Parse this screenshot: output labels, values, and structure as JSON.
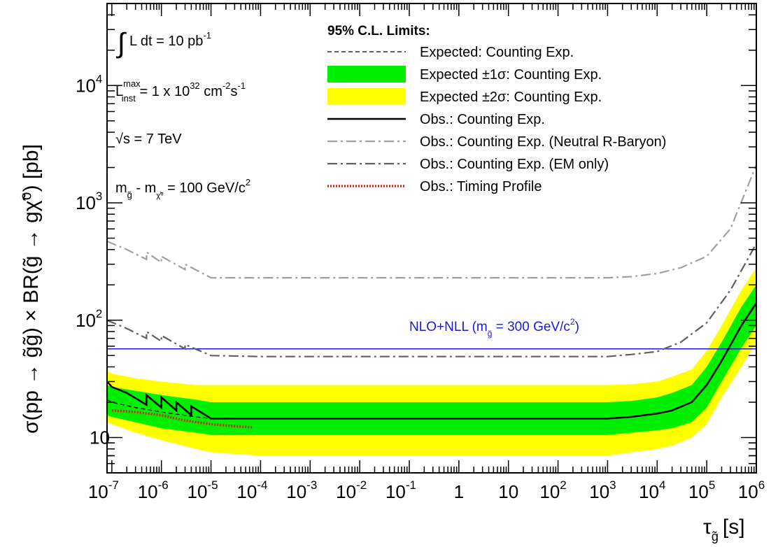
{
  "chart_data": {
    "type": "line",
    "x_scale": "log",
    "y_scale": "log",
    "xlim": [
      8e-08,
      1000000.0
    ],
    "ylim": [
      5,
      50000
    ],
    "xlabel": {
      "main": "τ",
      "sub": "g̃",
      "unit": "[s]"
    },
    "ylabel": "σ(pp → g̃g̃) × BR(g̃ → gχ̃⁰) [pb]",
    "xticks": [
      {
        "v": 1e-07,
        "base": "10",
        "exp": "-7"
      },
      {
        "v": 1e-06,
        "base": "10",
        "exp": "-6"
      },
      {
        "v": 1e-05,
        "base": "10",
        "exp": "-5"
      },
      {
        "v": 0.0001,
        "base": "10",
        "exp": "-4"
      },
      {
        "v": 0.001,
        "base": "10",
        "exp": "-3"
      },
      {
        "v": 0.01,
        "base": "10",
        "exp": "-2"
      },
      {
        "v": 0.1,
        "base": "10",
        "exp": "-1"
      },
      {
        "v": 1,
        "base": "1",
        "exp": ""
      },
      {
        "v": 10,
        "base": "10",
        "exp": ""
      },
      {
        "v": 100,
        "base": "10",
        "exp": "2"
      },
      {
        "v": 1000,
        "base": "10",
        "exp": "3"
      },
      {
        "v": 10000,
        "base": "10",
        "exp": "4"
      },
      {
        "v": 100000,
        "base": "10",
        "exp": "5"
      },
      {
        "v": 1000000,
        "base": "10",
        "exp": "6"
      }
    ],
    "yticks": [
      {
        "v": 10,
        "base": "10",
        "exp": ""
      },
      {
        "v": 100,
        "base": "10",
        "exp": "2"
      },
      {
        "v": 1000,
        "base": "10",
        "exp": "3"
      },
      {
        "v": 10000,
        "base": "10",
        "exp": "4"
      }
    ],
    "info": {
      "lumi": {
        "integral": "∫",
        "text": "L dt = 10 pb",
        "sup": "-1"
      },
      "inst": {
        "main": "L",
        "sup": "max",
        "sub": "inst",
        "rest": " = 1 x 10",
        "exp": "32",
        "unit1": " cm",
        "exp2": "-2",
        "unit2": "s",
        "exp3": "-1"
      },
      "energy": {
        "root": "√s",
        "text": " = 7 TeV"
      },
      "mass": {
        "m1": "m",
        "sub1": "g̃",
        "mid": " - m",
        "sub2": "χ̃⁰",
        "text": " = 100 GeV/c",
        "sup": "2"
      }
    },
    "legend_title": "95% C.L. Limits:",
    "series": [
      {
        "name": "Expected: Counting Exp.",
        "style": "dashed",
        "color": "#000000",
        "x": [
          8e-08,
          1e-07,
          3e-07,
          1e-06,
          5e-06,
          1e-05,
          0.0001,
          0.001,
          1,
          100,
          1000,
          3000,
          10000.0,
          20000.0,
          50000.0,
          100000.0,
          200000.0,
          500000.0,
          1000000.0
        ],
        "y": [
          21,
          20,
          18,
          16.5,
          15,
          14.5,
          14.5,
          14.5,
          14.5,
          14.5,
          14.5,
          15,
          16,
          17,
          20,
          28,
          45,
          90,
          140
        ]
      },
      {
        "name": "Expected ±1σ: Counting Exp.",
        "style": "band",
        "color": "#00ee00",
        "x": [
          8e-08,
          1e-07,
          3e-07,
          1e-06,
          5e-06,
          1e-05,
          0.0001,
          0.001,
          1,
          100,
          1000,
          3000,
          10000.0,
          20000.0,
          50000.0,
          100000.0,
          200000.0,
          500000.0,
          1000000.0
        ],
        "lower": [
          15.5,
          15,
          13.5,
          12,
          11,
          10.5,
          10.5,
          10.5,
          10.5,
          10.5,
          10.5,
          11,
          11.5,
          12,
          13.5,
          18,
          30,
          58,
          90
        ],
        "upper": [
          28,
          27,
          25,
          23,
          21,
          20,
          20,
          20,
          20,
          20,
          20,
          20.5,
          22,
          24,
          28,
          40,
          65,
          130,
          200
        ]
      },
      {
        "name": "Expected ±2σ: Counting Exp.",
        "style": "band",
        "color": "#ffff00",
        "x": [
          8e-08,
          1e-07,
          3e-07,
          1e-06,
          5e-06,
          1e-05,
          0.0001,
          0.001,
          1,
          100,
          1000,
          3000,
          10000.0,
          20000.0,
          50000.0,
          100000.0,
          200000.0,
          500000.0,
          1000000.0
        ],
        "lower": [
          13.5,
          13,
          11,
          9.5,
          8,
          7.5,
          7,
          7,
          7,
          7,
          7,
          7.5,
          8,
          8.5,
          10,
          13,
          22,
          40,
          65
        ],
        "upper": [
          37,
          35,
          32,
          30,
          28,
          28,
          28,
          28,
          28,
          28,
          28,
          28.5,
          30,
          33,
          38,
          55,
          90,
          180,
          280
        ]
      },
      {
        "name": "Obs.: Counting Exp.",
        "style": "solid",
        "color": "#000000",
        "x": [
          8e-08,
          1e-07,
          2e-07,
          5e-07,
          5e-07,
          1e-06,
          1e-06,
          2e-06,
          2e-06,
          4e-06,
          4e-06,
          1e-05,
          0.0001,
          0.001,
          1,
          100,
          1000,
          3000,
          10000.0,
          20000.0,
          50000.0,
          100000.0,
          200000.0,
          500000.0,
          1000000.0
        ],
        "y": [
          30,
          27,
          24,
          19,
          23,
          18,
          22,
          17,
          20,
          15.5,
          18.5,
          14.5,
          14.5,
          14.5,
          14.5,
          14.5,
          14.5,
          15,
          16,
          17,
          20,
          28,
          45,
          90,
          140
        ]
      },
      {
        "name": "Obs.: Counting Exp. (Neutral R-Baryon)",
        "style": "dashdot",
        "color": "#a0a0a0",
        "x": [
          8e-08,
          2e-07,
          5e-07,
          5e-07,
          1e-06,
          1e-06,
          3e-06,
          3e-06,
          1e-05,
          0.0001,
          0.001,
          1,
          100,
          1000,
          3000,
          10000.0,
          30000.0,
          100000.0,
          300000.0,
          1000000.0
        ],
        "y": [
          470,
          400,
          330,
          380,
          310,
          350,
          270,
          300,
          230,
          230,
          230,
          230,
          230,
          230,
          235,
          250,
          280,
          350,
          600,
          2100
        ]
      },
      {
        "name": "Obs.: Counting Exp. (EM only)",
        "style": "dashdot",
        "color": "#606060",
        "x": [
          8e-08,
          2e-07,
          5e-07,
          5e-07,
          1e-06,
          1e-06,
          3e-06,
          3e-06,
          1e-05,
          0.0001,
          0.001,
          1,
          100,
          1000,
          3000,
          10000.0,
          30000.0,
          100000.0,
          300000.0,
          1000000.0
        ],
        "y": [
          100,
          85,
          70,
          80,
          66,
          74,
          57,
          62,
          50,
          49,
          49,
          49,
          49,
          49,
          51,
          54,
          65,
          95,
          180,
          450
        ]
      },
      {
        "name": "Obs.: Timing Profile",
        "style": "dotted",
        "color": "#dd2222",
        "x": [
          1e-07,
          3e-07,
          1e-06,
          3e-06,
          1e-05,
          3e-05,
          7e-05
        ],
        "y": [
          17,
          16.5,
          15.5,
          14,
          13,
          12.5,
          12.2
        ]
      }
    ],
    "reference": {
      "text": "NLO+NLL (m",
      "sub": "g̃",
      "rest": " = 300 GeV/c",
      "sup": "2",
      "close": ")",
      "y": 57,
      "color": "#1a1ad6"
    }
  }
}
